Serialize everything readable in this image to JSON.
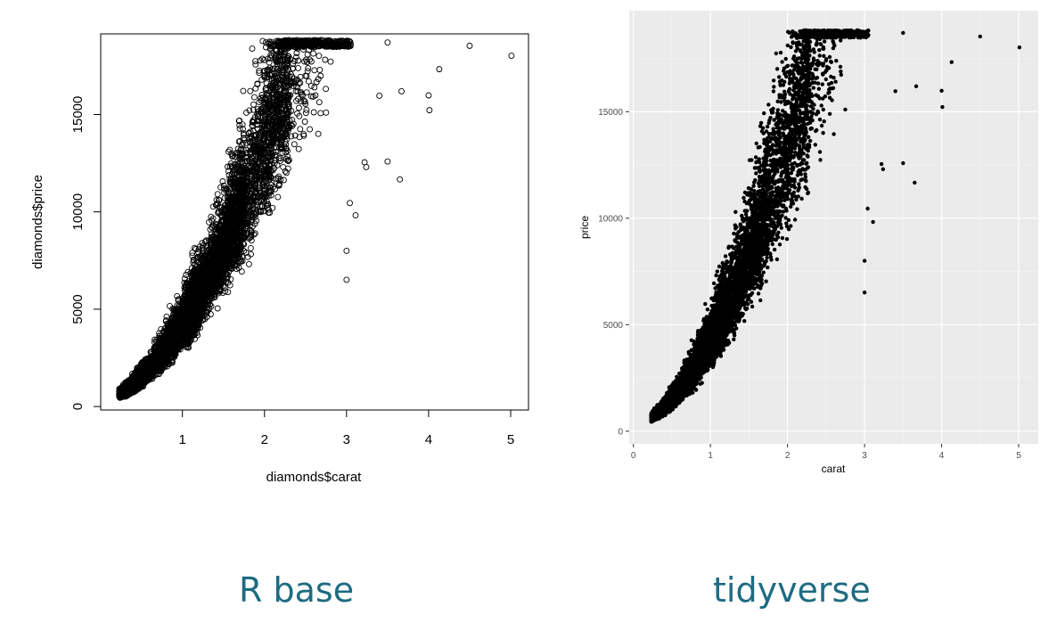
{
  "captions": {
    "left": "R base",
    "right": "tidyverse"
  },
  "colors": {
    "caption": "#1e6b82",
    "points": "#000000",
    "ggplot_panel": "#ebebeb",
    "ggplot_grid": "#ffffff"
  },
  "chart_data": [
    {
      "type": "scatter",
      "style": "base",
      "marker": "open-circle",
      "title": "",
      "xlabel": "diamonds$carat",
      "ylabel": "diamonds$price",
      "xlim": [
        0.2,
        5.0
      ],
      "ylim": [
        326,
        18823
      ],
      "xticks": [
        1,
        2,
        3,
        4,
        5
      ],
      "yticks": [
        0,
        5000,
        10000,
        15000
      ],
      "tick_labels_x": [
        "1",
        "2",
        "3",
        "4",
        "5"
      ],
      "tick_labels_y": [
        "0",
        "5000",
        "10000",
        "15000"
      ],
      "grid": false,
      "legend": "none",
      "outlier_points": [
        {
          "x": 3.01,
          "y": 18710
        },
        {
          "x": 3.05,
          "y": 18600
        },
        {
          "x": 3.5,
          "y": 18701
        },
        {
          "x": 4.5,
          "y": 18531
        },
        {
          "x": 5.01,
          "y": 18018
        },
        {
          "x": 4.13,
          "y": 17329
        },
        {
          "x": 3.67,
          "y": 16193
        },
        {
          "x": 4.0,
          "y": 15984
        },
        {
          "x": 3.4,
          "y": 15964
        },
        {
          "x": 4.01,
          "y": 15223
        },
        {
          "x": 3.22,
          "y": 12545
        },
        {
          "x": 3.24,
          "y": 12300
        },
        {
          "x": 3.5,
          "y": 12587
        },
        {
          "x": 3.65,
          "y": 11668
        },
        {
          "x": 3.0,
          "y": 8000
        },
        {
          "x": 3.0,
          "y": 6512
        },
        {
          "x": 3.11,
          "y": 9823
        },
        {
          "x": 3.04,
          "y": 10453
        },
        {
          "x": 2.8,
          "y": 18790
        },
        {
          "x": 2.75,
          "y": 15100
        }
      ]
    },
    {
      "type": "scatter",
      "style": "ggplot",
      "marker": "filled-dot",
      "title": "",
      "xlabel": "carat",
      "ylabel": "price",
      "xlim": [
        0.2,
        5.0
      ],
      "ylim": [
        326,
        18823
      ],
      "xticks": [
        0,
        1,
        2,
        3,
        4,
        5
      ],
      "yticks": [
        0,
        5000,
        10000,
        15000
      ],
      "tick_labels_x": [
        "0",
        "1",
        "2",
        "3",
        "4",
        "5"
      ],
      "tick_labels_y": [
        "0",
        "5000",
        "10000",
        "15000"
      ],
      "grid": true,
      "legend": "none",
      "outlier_points": [
        {
          "x": 3.01,
          "y": 18710
        },
        {
          "x": 3.05,
          "y": 18600
        },
        {
          "x": 3.5,
          "y": 18701
        },
        {
          "x": 4.5,
          "y": 18531
        },
        {
          "x": 5.01,
          "y": 18018
        },
        {
          "x": 4.13,
          "y": 17329
        },
        {
          "x": 3.67,
          "y": 16193
        },
        {
          "x": 4.0,
          "y": 15984
        },
        {
          "x": 3.4,
          "y": 15964
        },
        {
          "x": 4.01,
          "y": 15223
        },
        {
          "x": 3.22,
          "y": 12545
        },
        {
          "x": 3.24,
          "y": 12300
        },
        {
          "x": 3.5,
          "y": 12587
        },
        {
          "x": 3.65,
          "y": 11668
        },
        {
          "x": 3.0,
          "y": 8000
        },
        {
          "x": 3.0,
          "y": 6512
        },
        {
          "x": 3.11,
          "y": 9823
        },
        {
          "x": 3.04,
          "y": 10453
        },
        {
          "x": 2.8,
          "y": 18790
        },
        {
          "x": 2.75,
          "y": 15100
        }
      ]
    }
  ]
}
